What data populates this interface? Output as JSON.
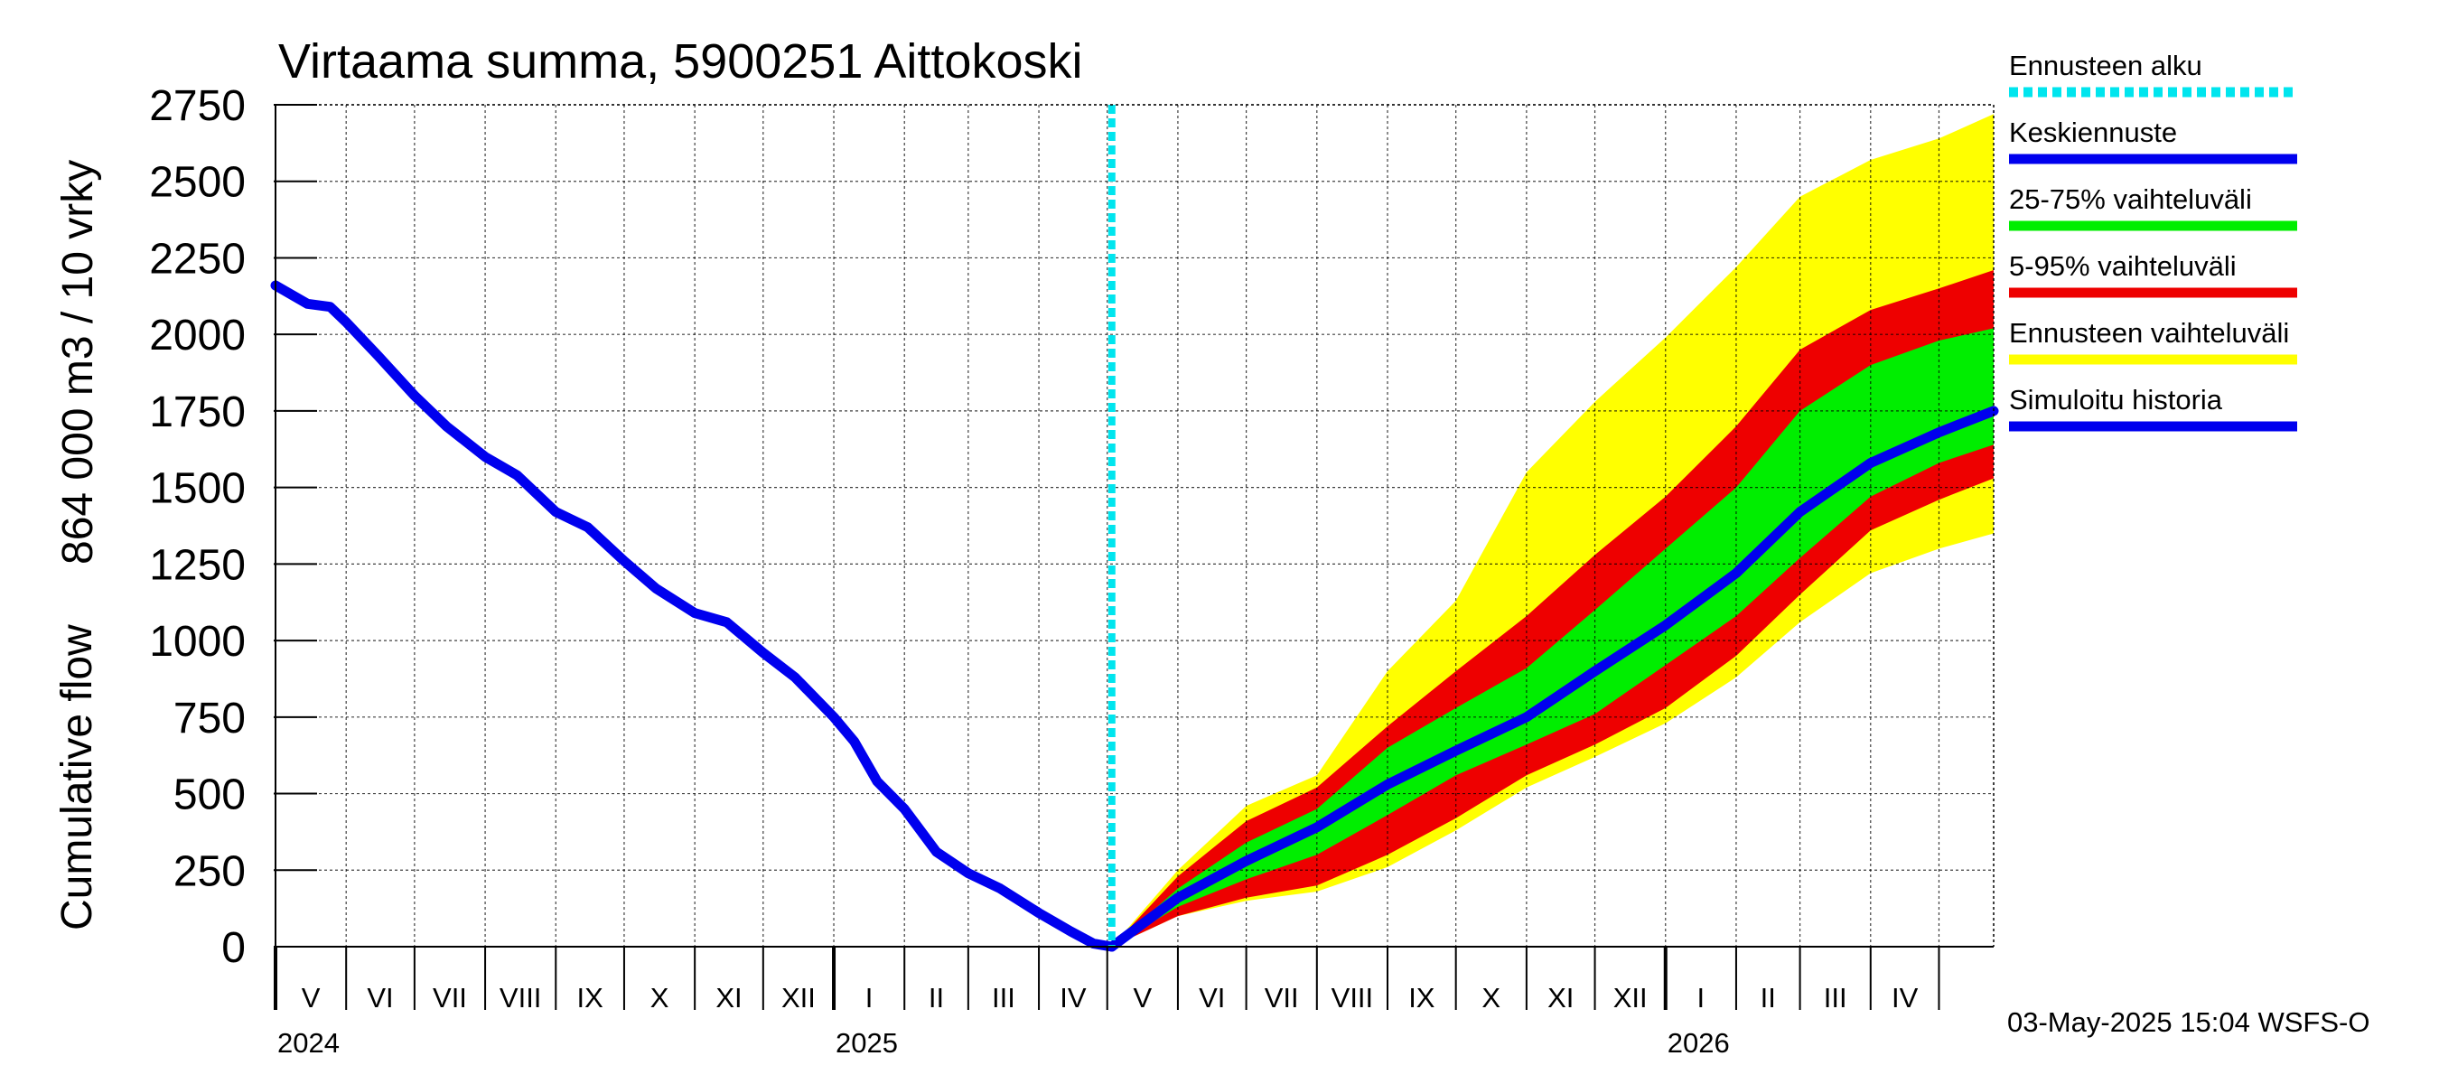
{
  "chart_data": {
    "type": "area",
    "title": "Virtaama summa, 5900251 Aittokoski",
    "ylabel_line1": "864 000 m3 / 10 vrky",
    "ylabel_line2": "Cumulative flow",
    "ylim": [
      0,
      2750
    ],
    "yticks": [
      0,
      250,
      500,
      750,
      1000,
      1250,
      1500,
      1750,
      2000,
      2250,
      2500,
      2750
    ],
    "xlim": [
      "2024-05-01",
      "2026-05-25"
    ],
    "forecast_start": "2025-05-03",
    "grid": true,
    "legend_position": "right",
    "month_labels": [
      {
        "label": "V",
        "start": "2024-05-01",
        "end": "2024-06-01"
      },
      {
        "label": "VI",
        "start": "2024-06-01",
        "end": "2024-07-01"
      },
      {
        "label": "VII",
        "start": "2024-07-01",
        "end": "2024-08-01"
      },
      {
        "label": "VIII",
        "start": "2024-08-01",
        "end": "2024-09-01"
      },
      {
        "label": "IX",
        "start": "2024-09-01",
        "end": "2024-10-01"
      },
      {
        "label": "X",
        "start": "2024-10-01",
        "end": "2024-11-01"
      },
      {
        "label": "XI",
        "start": "2024-11-01",
        "end": "2024-12-01"
      },
      {
        "label": "XII",
        "start": "2024-12-01",
        "end": "2025-01-01"
      },
      {
        "label": "I",
        "start": "2025-01-01",
        "end": "2025-02-01"
      },
      {
        "label": "II",
        "start": "2025-02-01",
        "end": "2025-03-01"
      },
      {
        "label": "III",
        "start": "2025-03-01",
        "end": "2025-04-01"
      },
      {
        "label": "IV",
        "start": "2025-04-01",
        "end": "2025-05-01"
      },
      {
        "label": "V",
        "start": "2025-05-01",
        "end": "2025-06-01"
      },
      {
        "label": "VI",
        "start": "2025-06-01",
        "end": "2025-07-01"
      },
      {
        "label": "VII",
        "start": "2025-07-01",
        "end": "2025-08-01"
      },
      {
        "label": "VIII",
        "start": "2025-08-01",
        "end": "2025-09-01"
      },
      {
        "label": "IX",
        "start": "2025-09-01",
        "end": "2025-10-01"
      },
      {
        "label": "X",
        "start": "2025-10-01",
        "end": "2025-11-01"
      },
      {
        "label": "XI",
        "start": "2025-11-01",
        "end": "2025-12-01"
      },
      {
        "label": "XII",
        "start": "2025-12-01",
        "end": "2026-01-01"
      },
      {
        "label": "I",
        "start": "2026-01-01",
        "end": "2026-02-01"
      },
      {
        "label": "II",
        "start": "2026-02-01",
        "end": "2026-03-01"
      },
      {
        "label": "III",
        "start": "2026-03-01",
        "end": "2026-04-01"
      },
      {
        "label": "IV",
        "start": "2026-04-01",
        "end": "2026-05-01"
      }
    ],
    "year_labels": [
      {
        "label": "2024",
        "date": "2024-05-01"
      },
      {
        "label": "2025",
        "date": "2025-01-01"
      },
      {
        "label": "2026",
        "date": "2026-01-01"
      }
    ],
    "legend": [
      {
        "label": "Ennusteen alku",
        "color": "#00e5ee",
        "style": "dashed"
      },
      {
        "label": "Keskiennuste",
        "color": "#0000ee",
        "style": "solid"
      },
      {
        "label": "25-75% vaihteluväli",
        "color": "#00ee00",
        "style": "solid"
      },
      {
        "label": "5-95% vaihteluväli",
        "color": "#ee0000",
        "style": "solid"
      },
      {
        "label": "Ennusteen vaihteluväli",
        "color": "#ffff00",
        "style": "solid"
      },
      {
        "label": "Simuloitu historia",
        "color": "#0000ee",
        "style": "solid"
      }
    ],
    "history": [
      [
        "2024-05-01",
        2160
      ],
      [
        "2024-05-15",
        2100
      ],
      [
        "2024-05-25",
        2090
      ],
      [
        "2024-06-01",
        2040
      ],
      [
        "2024-06-15",
        1930
      ],
      [
        "2024-07-01",
        1800
      ],
      [
        "2024-07-15",
        1700
      ],
      [
        "2024-08-01",
        1600
      ],
      [
        "2024-08-15",
        1540
      ],
      [
        "2024-09-01",
        1420
      ],
      [
        "2024-09-15",
        1370
      ],
      [
        "2024-10-01",
        1260
      ],
      [
        "2024-10-15",
        1170
      ],
      [
        "2024-11-01",
        1090
      ],
      [
        "2024-11-15",
        1060
      ],
      [
        "2024-12-01",
        960
      ],
      [
        "2024-12-15",
        880
      ],
      [
        "2025-01-01",
        750
      ],
      [
        "2025-01-10",
        670
      ],
      [
        "2025-01-20",
        540
      ],
      [
        "2025-02-01",
        450
      ],
      [
        "2025-02-15",
        310
      ],
      [
        "2025-03-01",
        240
      ],
      [
        "2025-03-15",
        190
      ],
      [
        "2025-04-01",
        110
      ],
      [
        "2025-04-15",
        50
      ],
      [
        "2025-04-25",
        10
      ],
      [
        "2025-05-03",
        0
      ]
    ],
    "forecast_x": [
      "2025-05-03",
      "2025-06-01",
      "2025-07-01",
      "2025-08-01",
      "2025-09-01",
      "2025-10-01",
      "2025-11-01",
      "2025-12-01",
      "2026-01-01",
      "2026-02-01",
      "2026-03-01",
      "2026-04-01",
      "2026-05-01",
      "2026-05-25"
    ],
    "forecast": {
      "median": [
        0,
        160,
        280,
        390,
        530,
        640,
        750,
        900,
        1050,
        1220,
        1420,
        1580,
        1680,
        1750
      ],
      "p25": [
        0,
        130,
        220,
        300,
        430,
        560,
        660,
        760,
        920,
        1080,
        1270,
        1470,
        1580,
        1640
      ],
      "p75": [
        0,
        190,
        340,
        450,
        650,
        780,
        910,
        1100,
        1300,
        1500,
        1750,
        1900,
        1980,
        2020
      ],
      "p5": [
        0,
        100,
        160,
        200,
        300,
        420,
        560,
        660,
        780,
        950,
        1150,
        1360,
        1460,
        1530
      ],
      "p95": [
        0,
        230,
        410,
        520,
        720,
        900,
        1080,
        1280,
        1470,
        1700,
        1950,
        2080,
        2150,
        2210
      ],
      "min": [
        0,
        100,
        150,
        180,
        260,
        380,
        520,
        620,
        730,
        880,
        1060,
        1220,
        1300,
        1350
      ],
      "max": [
        0,
        250,
        460,
        560,
        900,
        1130,
        1550,
        1780,
        1990,
        2220,
        2450,
        2570,
        2640,
        2720
      ]
    }
  },
  "timestamp": "03-May-2025 15:04 WSFS-O"
}
